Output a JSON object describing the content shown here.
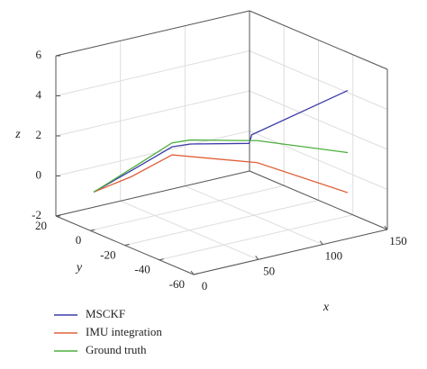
{
  "chart_data": {
    "type": "line3d",
    "xlabel": "x",
    "ylabel": "y",
    "zlabel": "z",
    "xlim": [
      0,
      150
    ],
    "xticks": [
      0,
      50,
      100,
      150
    ],
    "ylim": [
      20,
      -60
    ],
    "yticks": [
      20,
      0,
      -20,
      -40,
      -60
    ],
    "zlim": [
      -2,
      6
    ],
    "zticks": [
      -2,
      0,
      2,
      4,
      6
    ],
    "grid": true,
    "series": [
      {
        "name": "MSCKF",
        "color": "#3c3ca8",
        "x": [
          0,
          25,
          50,
          60,
          95,
          97,
          150
        ],
        "y": [
          -2,
          -5,
          -10,
          -13,
          -21,
          -21,
          -37
        ],
        "z": [
          0,
          0.8,
          1.8,
          1.9,
          1.7,
          2.1,
          4.1
        ]
      },
      {
        "name": "IMU integration",
        "color": "#e0603a",
        "x": [
          0,
          25,
          50,
          100,
          150
        ],
        "y": [
          -2,
          -5,
          -10,
          -22,
          -37
        ],
        "z": [
          0,
          0.5,
          1.4,
          0.7,
          -1.0
        ]
      },
      {
        "name": "Ground truth",
        "color": "#4caf3c",
        "x": [
          0,
          25,
          50,
          60,
          100,
          150
        ],
        "y": [
          -2,
          -5,
          -10,
          -13,
          -22,
          -37
        ],
        "z": [
          0,
          0.9,
          2.0,
          2.1,
          1.8,
          1.0
        ]
      }
    ]
  }
}
